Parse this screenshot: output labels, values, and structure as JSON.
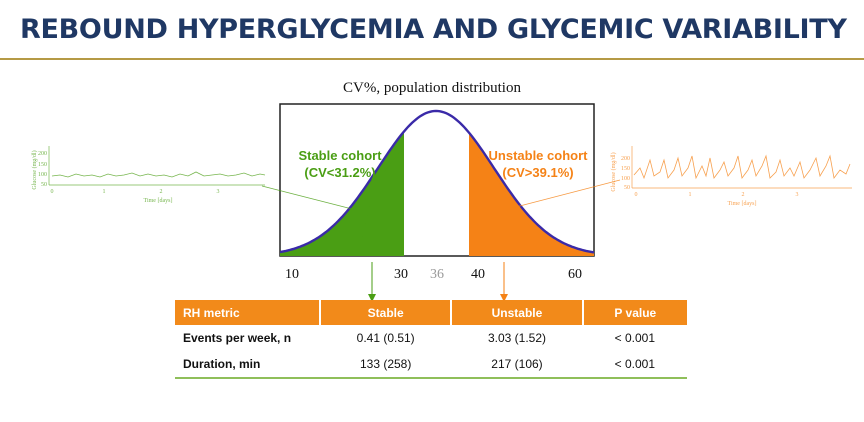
{
  "slide": {
    "title": "REBOUND HYPERGLYCEMIA AND GLYCEMIC VARIABILITY"
  },
  "figure": {
    "subtitle": "CV%, population distribution",
    "x_ticks": [
      "10",
      "30",
      "36",
      "40",
      "60"
    ],
    "stable_label_1": "Stable cohort",
    "stable_label_2": "(CV<31.2%)",
    "unstable_label_1": "Unstable cohort",
    "unstable_label_2": "(CV>39.1%)",
    "colors": {
      "stable": "#4a9e14",
      "unstable": "#f58216",
      "curve": "#3a2aa8",
      "mean_tick": "#9a9a9a"
    }
  },
  "left_trace": {
    "ylabel": "Glucose (mg/dl)",
    "y_ticks": [
      "200",
      "150",
      "100",
      "50"
    ],
    "x_ticks": [
      "0",
      "1",
      "2",
      "3"
    ],
    "xlabel": "Time [days]"
  },
  "right_trace": {
    "ylabel": "Glucose (mg/dl)",
    "y_ticks": [
      "200",
      "150",
      "100",
      "50"
    ],
    "x_ticks": [
      "0",
      "1",
      "2",
      "3"
    ],
    "xlabel": "Time [days]"
  },
  "table": {
    "headers": [
      "RH metric",
      "Stable",
      "Unstable",
      "P value"
    ],
    "rows": [
      [
        "Events per week, n",
        "0.41 (0.51)",
        "3.03 (1.52)",
        "< 0.001"
      ],
      [
        "Duration, min",
        "133 (258)",
        "217 (106)",
        "< 0.001"
      ]
    ]
  },
  "chart_data": {
    "type": "area",
    "title": "CV%, population distribution",
    "xlabel": "",
    "ylabel": "",
    "x_ticks": [
      10,
      30,
      36,
      40,
      60
    ],
    "xlim": [
      10,
      60
    ],
    "distribution_mean": 36,
    "series": [
      {
        "name": "Stable cohort",
        "threshold": "CV<31.2%"
      },
      {
        "name": "Unstable cohort",
        "threshold": "CV>39.1%"
      }
    ]
  }
}
